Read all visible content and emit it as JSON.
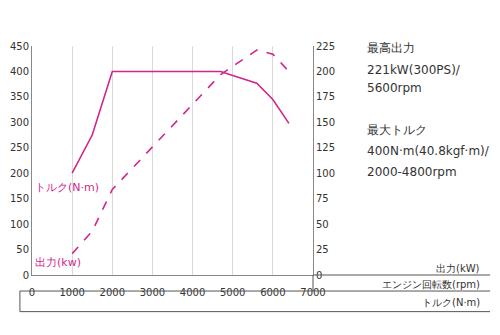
{
  "chart_data": {
    "type": "line",
    "x": [
      1000,
      1500,
      2000,
      3000,
      4000,
      4700,
      5000,
      5600,
      6000,
      6400
    ],
    "series": [
      {
        "name": "トルク(N·m)",
        "color": "#d1278a",
        "line_style": "solid",
        "axis": "y",
        "values": [
          200,
          275,
          400,
          400,
          400,
          400,
          392,
          377,
          345,
          298
        ]
      },
      {
        "name": "出力(kw)",
        "color": "#d1278a",
        "line_style": "dashed",
        "axis": "y2",
        "values": [
          21,
          43,
          84,
          126,
          168,
          197,
          205,
          221,
          217,
          200
        ]
      }
    ],
    "xlim": [
      0,
      7000
    ],
    "xticks": [
      0,
      1000,
      2000,
      3000,
      4000,
      5000,
      6000,
      7000
    ],
    "ylim": [
      0,
      450
    ],
    "yticks": [
      0,
      50,
      100,
      150,
      200,
      250,
      300,
      350,
      400,
      450
    ],
    "y2lim": [
      0,
      225
    ],
    "y2ticks": [
      0,
      25,
      50,
      75,
      100,
      125,
      150,
      175,
      200,
      225
    ],
    "grid": true,
    "annotations": [
      "最高出力",
      "221kW(300PS)/",
      "5600rpm",
      "最大トルク",
      "400N·m(40.8kgf·m)/",
      "2000-4800rpm"
    ],
    "axis_key": [
      "出力(kW)",
      "エンジン回転数(rpm)",
      "トルク(N·m)"
    ]
  }
}
